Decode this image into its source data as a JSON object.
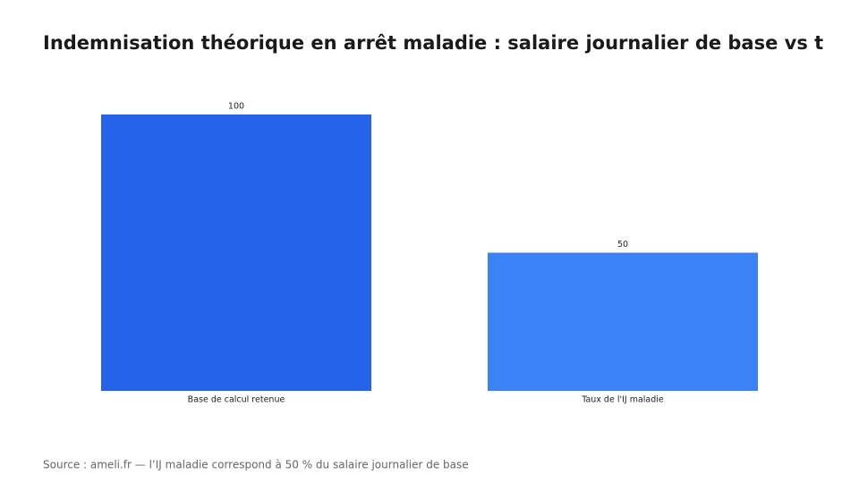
{
  "chart_data": {
    "type": "bar",
    "title": "Indemnisation théorique en arrêt maladie : salaire journalier de base vs t",
    "categories": [
      "Base de calcul retenue",
      "Taux de l'IJ maladie"
    ],
    "values": [
      100,
      50
    ],
    "colors": [
      "#2563eb",
      "#3b82f6"
    ],
    "source": "Source : ameli.fr — l’IJ maladie correspond à 50 % du salaire journalier de base"
  }
}
